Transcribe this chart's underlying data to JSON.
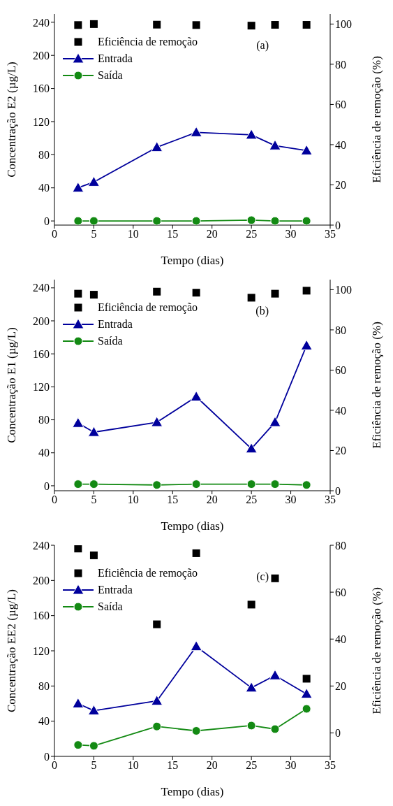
{
  "chart_data": [
    {
      "type": "line",
      "xlabel": "Tempo (dias)",
      "ylabel": "Concentração E2 (µg/L)",
      "y2label": "Eficiência de remoção (%)",
      "annotations": [
        "(a)"
      ],
      "legend": "top left",
      "xlim": [
        0,
        35
      ],
      "xticks": [
        0,
        5,
        10,
        15,
        20,
        25,
        30,
        35
      ],
      "ylim": [
        -5,
        250
      ],
      "yticks": [
        0,
        40,
        80,
        120,
        160,
        200,
        240
      ],
      "y2lim": [
        0,
        105
      ],
      "y2ticks": [
        0,
        20,
        40,
        60,
        80,
        100
      ],
      "x": [
        3,
        5,
        13,
        18,
        25,
        28,
        32
      ],
      "series": [
        {
          "name": "Eficiência de remoção",
          "type": "scatter",
          "axis": "y2",
          "marker": "square",
          "color": "#000000",
          "values": [
            99.5,
            100,
            99.7,
            99.5,
            99.2,
            99.6,
            99.6
          ]
        },
        {
          "name": "Entrada",
          "marker": "triangle",
          "color": "#00009c",
          "values": [
            40,
            47,
            89,
            107,
            104,
            91,
            85
          ]
        },
        {
          "name": "Saída",
          "marker": "circle",
          "color": "#138a13",
          "values": [
            0,
            0,
            0,
            0,
            1,
            0,
            0
          ]
        }
      ]
    },
    {
      "type": "line",
      "xlabel": "Tempo (dias)",
      "ylabel": "Concentração E1 (µg/L)",
      "y2label": "Eficiência de remoção (%)",
      "annotations": [
        "(b)"
      ],
      "legend": "top left",
      "xlim": [
        0,
        35
      ],
      "xticks": [
        0,
        5,
        10,
        15,
        20,
        25,
        30,
        35
      ],
      "ylim": [
        -6,
        250
      ],
      "yticks": [
        0,
        40,
        80,
        120,
        160,
        200,
        240
      ],
      "y2lim": [
        0,
        105
      ],
      "y2ticks": [
        0,
        20,
        40,
        60,
        80,
        100
      ],
      "x": [
        3,
        5,
        13,
        18,
        25,
        28,
        32
      ],
      "series": [
        {
          "name": "Eficiência de remoção",
          "type": "scatter",
          "axis": "y2",
          "marker": "square",
          "color": "#000000",
          "values": [
            98,
            97.5,
            99,
            98.5,
            96,
            98,
            99.5
          ]
        },
        {
          "name": "Entrada",
          "marker": "triangle",
          "color": "#00009c",
          "values": [
            76,
            65,
            77,
            108,
            45,
            77,
            170
          ]
        },
        {
          "name": "Saída",
          "marker": "circle",
          "color": "#138a13",
          "values": [
            2,
            2,
            1,
            2,
            2,
            2,
            1
          ]
        }
      ]
    },
    {
      "type": "line",
      "xlabel": "Tempo (dias)",
      "ylabel": "Concentração EE2 (µg/L)",
      "y2label": "Eficiência de remoção (%)",
      "annotations": [
        "(c)"
      ],
      "legend": "top left",
      "xlim": [
        0,
        35
      ],
      "xticks": [
        0,
        5,
        10,
        15,
        20,
        25,
        30,
        35
      ],
      "ylim": [
        0,
        240
      ],
      "yticks": [
        0,
        40,
        80,
        120,
        160,
        200,
        240
      ],
      "y2lim": [
        -10,
        80
      ],
      "y2ticks": [
        0,
        20,
        40,
        60,
        80
      ],
      "x": [
        3,
        5,
        13,
        18,
        25,
        28,
        32
      ],
      "series": [
        {
          "name": "Eficiência de remoção",
          "type": "scatter",
          "axis": "y2",
          "marker": "square",
          "color": "#000000",
          "values": [
            78.6,
            75.7,
            46.3,
            76.6,
            54.7,
            65.9,
            23.1
          ]
        },
        {
          "name": "Entrada",
          "marker": "triangle",
          "color": "#00009c",
          "values": [
            60,
            52,
            63,
            125,
            78,
            92,
            71
          ]
        },
        {
          "name": "Saída",
          "marker": "circle",
          "color": "#138a13",
          "values": [
            13,
            12,
            34,
            29,
            35,
            31,
            54
          ]
        }
      ]
    }
  ]
}
